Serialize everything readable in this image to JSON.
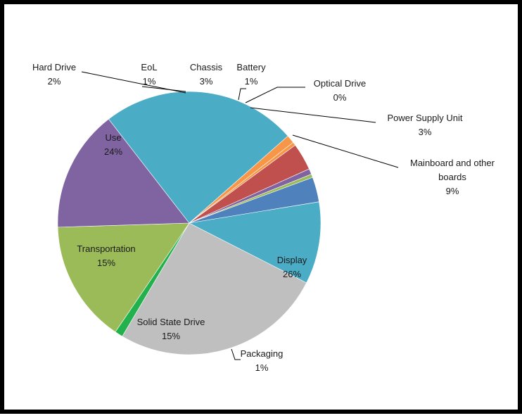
{
  "chart_data": {
    "type": "pie",
    "title": "",
    "slices": [
      {
        "name": "Display",
        "value": 26,
        "label": "26%",
        "color": "#bfbfbf"
      },
      {
        "name": "Packaging",
        "value": 1,
        "label": "1%",
        "color": "#22b14c"
      },
      {
        "name": "Solid State Drive",
        "value": 15,
        "label": "15%",
        "color": "#9bbb59"
      },
      {
        "name": "Transportation",
        "value": 15,
        "label": "15%",
        "color": "#8064a2"
      },
      {
        "name": "Use",
        "value": 24,
        "label": "24%",
        "color": "#4bacc6"
      },
      {
        "name": "Hard Drive",
        "value": 2,
        "label": "2%",
        "color": "#f79646"
      },
      {
        "name": "EoL",
        "value": 1,
        "label": "1%",
        "color": "#f79646"
      },
      {
        "name": "Chassis",
        "value": 3,
        "label": "3%",
        "color": "#c0504d"
      },
      {
        "name": "Battery",
        "value": 1,
        "label": "1%",
        "color": "#8064a2"
      },
      {
        "name": "Optical Drive",
        "value": 0,
        "label": "0%",
        "color": "#9bbb59"
      },
      {
        "name": "Power Supply Unit",
        "value": 3,
        "label": "3%",
        "color": "#4f81bd"
      },
      {
        "name": "Mainboard and other boards",
        "value": 9,
        "label": "9%",
        "color": "#4bacc6"
      }
    ]
  }
}
